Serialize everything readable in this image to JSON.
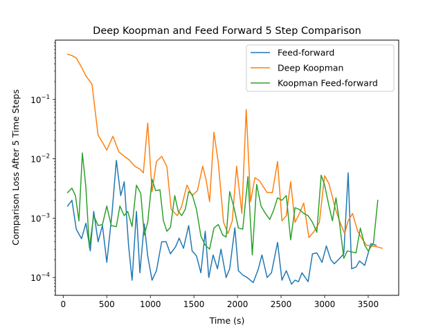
{
  "chart_data": {
    "type": "line",
    "title": "Deep Koopman and Feed Forward 5 Step Comparison",
    "xlabel": "Time (s)",
    "ylabel": "Comparison Loss After 5 Time Steps",
    "xlim": [
      -90,
      3850
    ],
    "ylim": [
      5e-05,
      1.0
    ],
    "yscale": "log",
    "grid": false,
    "legend_position": "top-right",
    "x_ticks": [
      0,
      500,
      1000,
      1500,
      2000,
      2500,
      3000,
      3500
    ],
    "x_tick_labels": [
      "0",
      "500",
      "1000",
      "1500",
      "2000",
      "2500",
      "3000",
      "3500"
    ],
    "y_ticks": [
      0.0001,
      0.001,
      0.01,
      0.1
    ],
    "y_tick_labels": [
      {
        "base": "10",
        "exp": "−4"
      },
      {
        "base": "10",
        "exp": "−3"
      },
      {
        "base": "10",
        "exp": "−2"
      },
      {
        "base": "10",
        "exp": "−1"
      }
    ],
    "series": [
      {
        "name": "Feed-forward",
        "color": "#1f77b4",
        "x": [
          50,
          100,
          150,
          210,
          260,
          310,
          350,
          400,
          450,
          500,
          560,
          610,
          660,
          700,
          750,
          790,
          840,
          880,
          930,
          970,
          1020,
          1070,
          1130,
          1180,
          1230,
          1290,
          1330,
          1380,
          1440,
          1480,
          1530,
          1580,
          1630,
          1670,
          1720,
          1770,
          1810,
          1870,
          1910,
          1970,
          2010,
          2060,
          2110,
          2180,
          2240,
          2280,
          2340,
          2390,
          2460,
          2510,
          2560,
          2620,
          2660,
          2700,
          2740,
          2810,
          2860,
          2910,
          2970,
          3020,
          3070,
          3110,
          3160,
          3220,
          3270,
          3310,
          3360,
          3400,
          3460,
          3530,
          3590
        ],
        "y": [
          0.0016,
          0.002,
          0.00065,
          0.00045,
          0.00082,
          0.00028,
          0.0013,
          0.0004,
          0.00075,
          0.00018,
          0.0012,
          0.0094,
          0.0024,
          0.0041,
          0.00035,
          9e-05,
          0.0013,
          0.00012,
          0.0008,
          0.00023,
          9e-05,
          0.00013,
          0.0004,
          0.0004,
          0.00025,
          0.00033,
          0.00046,
          0.00031,
          0.00075,
          0.00028,
          0.00023,
          0.00012,
          0.0006,
          0.0001,
          0.00024,
          0.00014,
          0.0003,
          0.0001,
          0.00014,
          0.00069,
          0.00013,
          0.00011,
          0.0001,
          8.2e-05,
          0.00014,
          0.00024,
          0.0001,
          0.00012,
          0.00039,
          9e-05,
          0.00013,
          7.7e-05,
          9e-05,
          8.5e-05,
          0.00012,
          8.5e-05,
          0.00025,
          0.00026,
          0.00018,
          0.00034,
          0.0002,
          0.00017,
          0.0002,
          0.00025,
          0.0058,
          0.00014,
          0.00015,
          0.00019,
          0.00016,
          0.00037,
          0.00035
        ]
      },
      {
        "name": "Deep Koopman",
        "color": "#ff7f0e",
        "x": [
          50,
          100,
          150,
          210,
          260,
          330,
          400,
          450,
          500,
          570,
          640,
          700,
          760,
          820,
          880,
          920,
          970,
          1020,
          1070,
          1130,
          1190,
          1240,
          1310,
          1360,
          1420,
          1480,
          1540,
          1600,
          1640,
          1680,
          1730,
          1780,
          1840,
          1890,
          1940,
          1990,
          2050,
          2100,
          2150,
          2200,
          2250,
          2290,
          2340,
          2400,
          2460,
          2510,
          2560,
          2610,
          2660,
          2700,
          2760,
          2820,
          2880,
          2940,
          3000,
          3050,
          3120,
          3170,
          3230,
          3270,
          3320,
          3380,
          3430,
          3480,
          3540,
          3600,
          3660
        ],
        "y": [
          0.58,
          0.55,
          0.5,
          0.35,
          0.25,
          0.18,
          0.025,
          0.019,
          0.014,
          0.024,
          0.013,
          0.011,
          0.0095,
          0.0075,
          0.0067,
          0.0058,
          0.04,
          0.0028,
          0.009,
          0.011,
          0.0074,
          0.0014,
          0.0011,
          0.0016,
          0.0036,
          0.0024,
          0.0029,
          0.0075,
          0.0044,
          0.0019,
          0.028,
          0.0085,
          0.00085,
          0.00055,
          0.0009,
          0.0075,
          0.0012,
          0.068,
          0.0019,
          0.0048,
          0.0043,
          0.0035,
          0.0027,
          0.0027,
          0.009,
          0.0009,
          0.0011,
          0.0041,
          0.00085,
          0.0011,
          0.0018,
          0.00047,
          0.0006,
          0.00085,
          0.0052,
          0.0038,
          0.0015,
          0.0009,
          0.00055,
          0.0009,
          0.0012,
          0.0006,
          0.00045,
          0.00035,
          0.00034,
          0.00033,
          0.00031
        ]
      },
      {
        "name": "Koopman Feed-forward",
        "color": "#2ca02c",
        "x": [
          50,
          100,
          140,
          180,
          220,
          260,
          300,
          350,
          400,
          450,
          500,
          550,
          610,
          650,
          700,
          740,
          790,
          840,
          890,
          930,
          970,
          1020,
          1060,
          1110,
          1150,
          1190,
          1230,
          1280,
          1320,
          1360,
          1400,
          1440,
          1480,
          1530,
          1580,
          1630,
          1680,
          1730,
          1780,
          1830,
          1870,
          1910,
          1960,
          2010,
          2060,
          2120,
          2170,
          2220,
          2270,
          2320,
          2370,
          2410,
          2460,
          2510,
          2560,
          2610,
          2660,
          2710,
          2760,
          2810,
          2860,
          2910,
          2960,
          3000,
          3050,
          3090,
          3130,
          3170,
          3220,
          3260,
          3310,
          3360,
          3410,
          3460,
          3500,
          3560,
          3610
        ],
        "y": [
          0.0027,
          0.0032,
          0.0024,
          0.0009,
          0.0125,
          0.0033,
          0.00032,
          0.0011,
          0.00075,
          0.00078,
          0.0016,
          0.00075,
          0.00072,
          0.0016,
          0.0011,
          0.0013,
          0.00072,
          0.0036,
          0.0026,
          0.00052,
          0.00085,
          0.0045,
          0.0029,
          0.003,
          0.0009,
          0.0006,
          0.0007,
          0.0024,
          0.0013,
          0.0011,
          0.0014,
          0.0028,
          0.0025,
          0.0014,
          0.0005,
          0.00035,
          0.0003,
          0.00068,
          0.00078,
          0.00052,
          0.00048,
          0.0028,
          0.0015,
          0.00068,
          0.00065,
          0.005,
          0.00024,
          0.0037,
          0.0016,
          0.0012,
          0.00095,
          0.0013,
          0.0022,
          0.002,
          0.0024,
          0.00043,
          0.0015,
          0.0014,
          0.0012,
          0.0011,
          0.00085,
          0.00058,
          0.0053,
          0.0036,
          0.0016,
          0.0009,
          0.0022,
          0.00085,
          0.00021,
          0.00028,
          0.00027,
          0.00026,
          0.00068,
          0.00035,
          0.00028,
          0.00038,
          0.002
        ]
      }
    ]
  }
}
